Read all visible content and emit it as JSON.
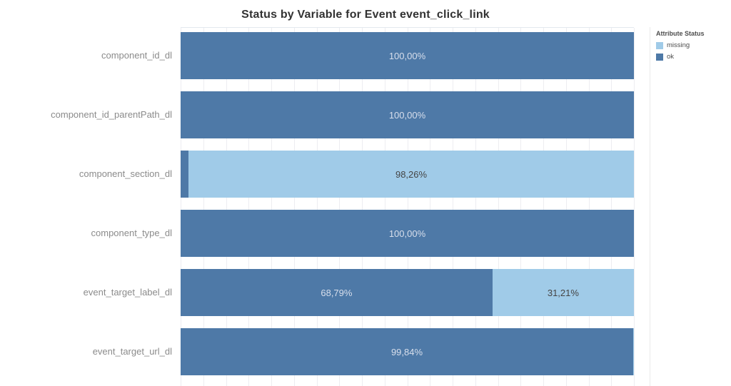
{
  "title": "Status by Variable for Event event_click_link",
  "legend": {
    "title": "Attribute Status",
    "items": [
      {
        "label": "missing",
        "status": "missing"
      },
      {
        "label": "ok",
        "status": "ok"
      }
    ]
  },
  "colors": {
    "ok": "#4e79a7",
    "missing": "#a0cbe8",
    "label_on_ok": "#d8dfec",
    "label_on_missing": "#454545",
    "category_label": "#8b8b8b",
    "title": "#323232",
    "gridline": "#ededf1",
    "legend_divider": "#e9e9e9"
  },
  "chart_data": {
    "type": "bar",
    "orientation": "horizontal",
    "stacked": true,
    "title": "Status by Variable for Event event_click_link",
    "xlabel": "",
    "ylabel": "",
    "x_axis": {
      "min": 0,
      "max": 100,
      "unit": "%",
      "gridline_step": 5,
      "tick_labels_visible": false
    },
    "grid": true,
    "legend_position": "top-right",
    "legend_title": "Attribute Status",
    "categories": [
      "component_id_dl",
      "component_id_parentPath_dl",
      "component_section_dl",
      "component_type_dl",
      "event_target_label_dl",
      "event_target_url_dl"
    ],
    "series": [
      {
        "name": "ok",
        "values": [
          100.0,
          100.0,
          1.74,
          100.0,
          68.79,
          99.84
        ]
      },
      {
        "name": "missing",
        "values": [
          0,
          0,
          98.26,
          0,
          31.21,
          0.16
        ]
      }
    ],
    "bars": [
      {
        "category": "component_id_dl",
        "segments": [
          {
            "status": "ok",
            "value": 100.0,
            "label": "100,00%"
          }
        ]
      },
      {
        "category": "component_id_parentPath_dl",
        "segments": [
          {
            "status": "ok",
            "value": 100.0,
            "label": "100,00%"
          }
        ]
      },
      {
        "category": "component_section_dl",
        "segments": [
          {
            "status": "ok",
            "value": 1.74,
            "label": ""
          },
          {
            "status": "missing",
            "value": 98.26,
            "label": "98,26%"
          }
        ]
      },
      {
        "category": "component_type_dl",
        "segments": [
          {
            "status": "ok",
            "value": 100.0,
            "label": "100,00%"
          }
        ]
      },
      {
        "category": "event_target_label_dl",
        "segments": [
          {
            "status": "ok",
            "value": 68.79,
            "label": "68,79%"
          },
          {
            "status": "missing",
            "value": 31.21,
            "label": "31,21%"
          }
        ]
      },
      {
        "category": "event_target_url_dl",
        "segments": [
          {
            "status": "ok",
            "value": 99.84,
            "label": "99,84%"
          },
          {
            "status": "missing",
            "value": 0.16,
            "label": ""
          }
        ]
      }
    ]
  }
}
